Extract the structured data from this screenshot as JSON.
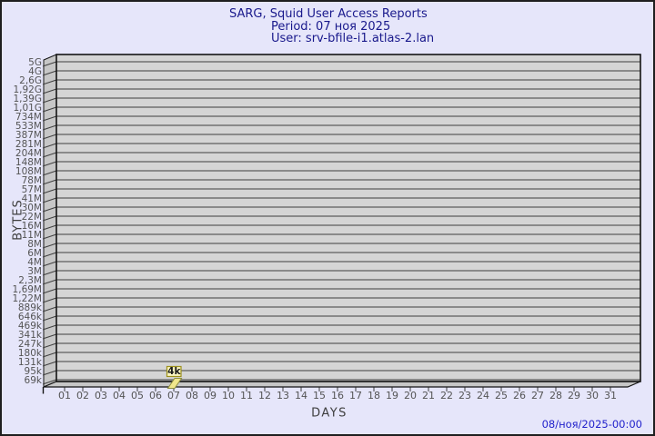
{
  "window": {
    "background_color": "#e6e6fa",
    "border_color": "#1f1f1f"
  },
  "header": {
    "title": "SARG, Squid User Access Reports",
    "period": "Period: 07 ноя 2025",
    "user": "User: srv-bfile-i1.atlas-2.lan",
    "text_color": "#19198c"
  },
  "footer": {
    "generated": "08/ноя/2025-00:00",
    "text_color": "#2222cc"
  },
  "chart_data": {
    "type": "bar",
    "style": "3d",
    "title": "SARG, Squid User Access Reports",
    "subtitles": [
      "Period: 07 ноя 2025",
      "User: srv-bfile-i1.atlas-2.lan"
    ],
    "xlabel": "DAYS",
    "ylabel": "BYTES",
    "grid": true,
    "legend": false,
    "x_tick_labels": [
      "01",
      "02",
      "03",
      "04",
      "05",
      "06",
      "07",
      "08",
      "09",
      "10",
      "11",
      "12",
      "13",
      "14",
      "15",
      "16",
      "17",
      "18",
      "19",
      "20",
      "21",
      "22",
      "23",
      "24",
      "25",
      "26",
      "27",
      "28",
      "29",
      "30",
      "31"
    ],
    "y_tick_labels": [
      "5G",
      "4G",
      "2,6G",
      "1,92G",
      "1,39G",
      "1,01G",
      "734M",
      "533M",
      "387M",
      "281M",
      "204M",
      "148M",
      "108M",
      "78M",
      "57M",
      "41M",
      "30M",
      "22M",
      "16M",
      "11M",
      "8M",
      "6M",
      "4M",
      "3M",
      "2,3M",
      "1,69M",
      "1,22M",
      "889k",
      "646k",
      "469k",
      "341k",
      "247k",
      "180k",
      "131k",
      "95k",
      "69k"
    ],
    "y_axis_top_label": "5G",
    "y_axis_bottom_label": "69k",
    "values": [
      0,
      0,
      0,
      0,
      0,
      0,
      4096,
      0,
      0,
      0,
      0,
      0,
      0,
      0,
      0,
      0,
      0,
      0,
      0,
      0,
      0,
      0,
      0,
      0,
      0,
      0,
      0,
      0,
      0,
      0,
      0
    ],
    "bars": [
      {
        "day": "07",
        "value_label": "4k",
        "value_bytes_estimate": 4096
      }
    ],
    "colors": {
      "plot_face": "#d5d5d5",
      "plot_side": "#c7c7c7",
      "grid_line": "#3f3f3f",
      "edge_line": "#141414",
      "axis_text": "#545454",
      "bar_fill": "#f0e68c",
      "bar_border": "#8f8f3f",
      "value_box_fill": "#f9f4c0",
      "value_box_border": "#9c901c",
      "value_box_text": "#1a1a1a"
    }
  }
}
